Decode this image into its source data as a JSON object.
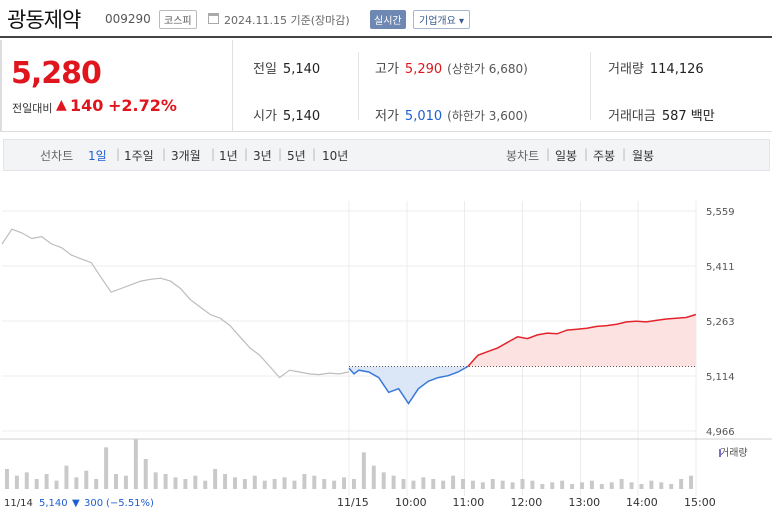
{
  "header": {
    "name": "광동제약",
    "code": "009290",
    "market": "코스피",
    "date": "2024.11.15 기준(장마감)",
    "realtime": "실시간",
    "company_info": "기업개요 ▾"
  },
  "summary": {
    "price": "5,280",
    "diff_label": "전일대비",
    "diff_arrow": "▲",
    "diff_value": "140",
    "diff_rate": "+2.72%",
    "prev_label": "전일",
    "prev": "5,140",
    "open_label": "시가",
    "open": "5,140",
    "high_label": "고가",
    "high": "5,290",
    "upper_limit": "(상한가 6,680)",
    "low_label": "저가",
    "low": "5,010",
    "lower_limit": "(하한가 3,600)",
    "volume_label": "거래량",
    "volume": "114,126",
    "amount_label": "거래대금",
    "amount": "587 백만"
  },
  "tabs": {
    "line_label": "선차트",
    "periods": [
      "1일",
      "1주일",
      "3개월",
      "1년",
      "3년",
      "5년",
      "10년"
    ],
    "candle_label": "봉차트",
    "candles": [
      "일봉",
      "주봉",
      "월봉"
    ]
  },
  "chart_data": {
    "type": "line",
    "y_ticks": [
      "5,559",
      "5,411",
      "5,263",
      "5,114",
      "4,966"
    ],
    "ylim": [
      4966,
      5559
    ],
    "baseline": 5140,
    "x_ticks": [
      "11/15",
      "10:00",
      "11:00",
      "12:00",
      "13:00",
      "14:00",
      "15:00"
    ],
    "volume_legend": "거래량",
    "footer": {
      "date": "11/14",
      "price": "5,140",
      "arrow": "▼",
      "change": "300",
      "rate": "(−5.51%)"
    },
    "series": [
      {
        "id": "prev_day",
        "x": [
          0,
          2,
          4,
          6,
          8,
          10,
          12,
          14,
          16,
          18,
          20,
          22,
          24,
          26,
          28,
          30,
          32,
          34,
          36,
          38,
          40,
          42,
          44,
          46,
          48,
          50,
          52,
          54,
          56,
          58,
          60,
          62,
          64,
          66,
          68,
          70
        ],
        "values": [
          5470,
          5510,
          5500,
          5485,
          5490,
          5470,
          5460,
          5440,
          5430,
          5420,
          5380,
          5340,
          5350,
          5360,
          5370,
          5375,
          5378,
          5370,
          5350,
          5320,
          5300,
          5280,
          5270,
          5250,
          5220,
          5190,
          5170,
          5140,
          5110,
          5130,
          5125,
          5120,
          5118,
          5122,
          5120,
          5125
        ]
      },
      {
        "id": "today",
        "x": [
          70,
          71,
          72,
          74,
          76,
          78,
          80,
          82,
          84,
          86,
          88,
          90,
          92,
          94,
          96,
          98,
          100,
          102,
          104,
          106,
          108,
          110,
          112,
          114,
          116,
          118,
          120,
          122,
          124,
          126,
          128,
          130,
          132,
          134,
          136,
          138,
          140
        ],
        "values": [
          5135,
          5120,
          5130,
          5125,
          5110,
          5070,
          5080,
          5040,
          5080,
          5100,
          5110,
          5115,
          5125,
          5140,
          5170,
          5180,
          5190,
          5205,
          5220,
          5215,
          5225,
          5230,
          5228,
          5238,
          5240,
          5243,
          5248,
          5250,
          5254,
          5260,
          5262,
          5260,
          5264,
          5268,
          5270,
          5272,
          5280
        ]
      }
    ],
    "volume": [
      12,
      8,
      10,
      6,
      9,
      5,
      14,
      7,
      11,
      6,
      25,
      9,
      8,
      30,
      18,
      10,
      9,
      7,
      6,
      8,
      5,
      12,
      9,
      7,
      6,
      8,
      5,
      6,
      7,
      5,
      9,
      8,
      6,
      5,
      7,
      6,
      22,
      14,
      10,
      8,
      6,
      5,
      7,
      6,
      5,
      8,
      6,
      5,
      4,
      6,
      5,
      4,
      6,
      5,
      3,
      4,
      5,
      3,
      4,
      5,
      3,
      4,
      6,
      4,
      3,
      5,
      4,
      3,
      6,
      8
    ]
  }
}
